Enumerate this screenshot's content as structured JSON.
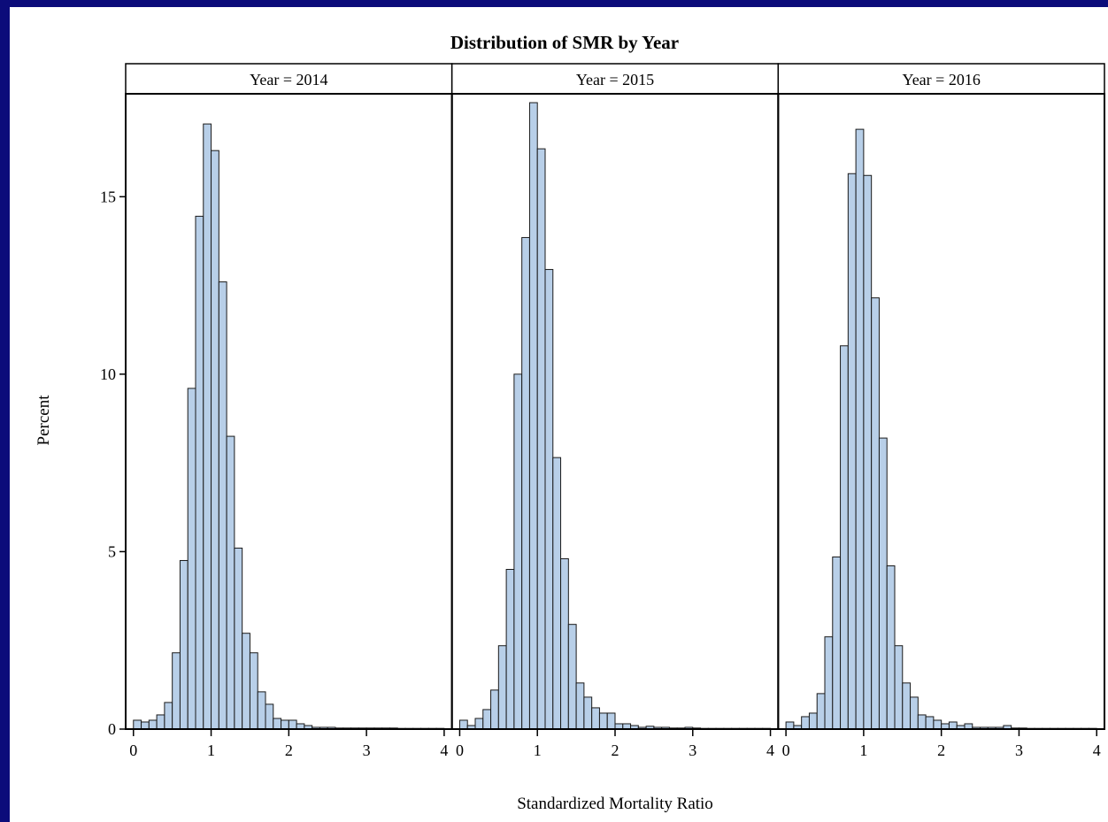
{
  "chart_data": {
    "type": "bar",
    "title": "Distribution of SMR by Year",
    "xlabel": "Standardized Mortality Ratio",
    "ylabel": "Percent",
    "ylim": [
      0,
      17.9
    ],
    "xlim": [
      -0.1,
      4.1
    ],
    "yticks": [
      0,
      5,
      10,
      15
    ],
    "xticks": [
      0,
      1,
      2,
      3,
      4
    ],
    "bin_width": 0.1,
    "bar_color": "#b8cfe8",
    "panels": [
      {
        "label": "Year = 2014",
        "values": [
          0.25,
          0.2,
          0.25,
          0.4,
          0.75,
          2.15,
          4.75,
          9.6,
          14.45,
          17.05,
          16.3,
          12.6,
          8.25,
          5.1,
          2.7,
          2.15,
          1.05,
          0.7,
          0.3,
          0.25,
          0.25,
          0.15,
          0.1,
          0.05,
          0.05,
          0.05,
          0.03,
          0.03,
          0.03,
          0.03,
          0.03,
          0.03,
          0.03,
          0.03,
          0.02,
          0.02,
          0.02,
          0.02,
          0.02,
          0.02
        ]
      },
      {
        "label": "Year = 2015",
        "values": [
          0.25,
          0.1,
          0.3,
          0.55,
          1.1,
          2.35,
          4.5,
          10.0,
          13.85,
          17.65,
          16.35,
          12.95,
          7.65,
          4.8,
          2.95,
          1.3,
          0.9,
          0.6,
          0.45,
          0.45,
          0.15,
          0.15,
          0.1,
          0.05,
          0.08,
          0.05,
          0.05,
          0.03,
          0.03,
          0.05,
          0.03,
          0.02,
          0.02,
          0.02,
          0.02,
          0.02,
          0.02,
          0.02,
          0.02,
          0.02
        ]
      },
      {
        "label": "Year = 2016",
        "values": [
          0.2,
          0.1,
          0.35,
          0.45,
          1.0,
          2.6,
          4.85,
          10.8,
          15.65,
          16.9,
          15.6,
          12.15,
          8.2,
          4.6,
          2.35,
          1.3,
          0.9,
          0.4,
          0.35,
          0.25,
          0.15,
          0.2,
          0.1,
          0.15,
          0.05,
          0.05,
          0.05,
          0.05,
          0.1,
          0.03,
          0.03,
          0.02,
          0.02,
          0.02,
          0.02,
          0.02,
          0.02,
          0.02,
          0.02,
          0.02
        ]
      }
    ]
  }
}
